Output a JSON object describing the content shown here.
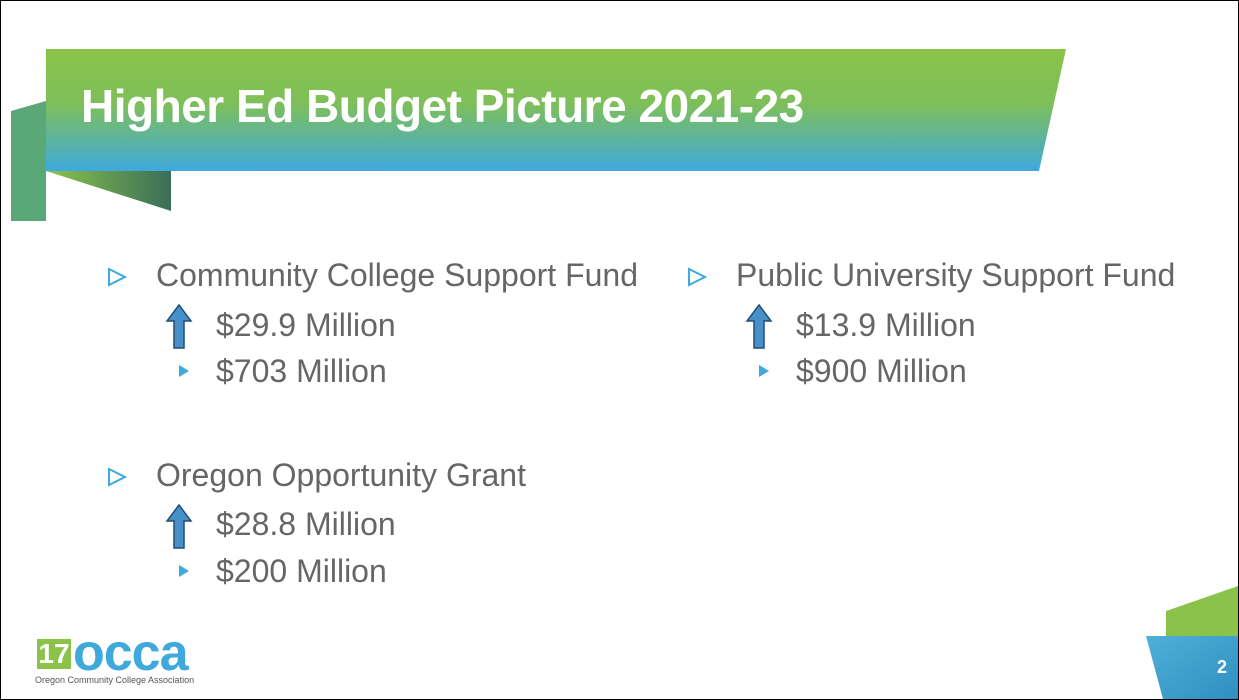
{
  "title": "Higher Ed Budget Picture 2021-23",
  "sections": [
    {
      "heading": "Community College Support Fund",
      "change": "$29.9 Million",
      "total": "$703 Million"
    },
    {
      "heading": "Public University Support Fund",
      "change": "$13.9 Million",
      "total": "$900 Million"
    },
    {
      "heading": "Oregon Opportunity Grant",
      "change": "$28.8 Million",
      "total": "$200 Million"
    }
  ],
  "logo": {
    "number": "17",
    "name": "occa",
    "tagline": "Oregon Community College Association"
  },
  "page_number": "2"
}
